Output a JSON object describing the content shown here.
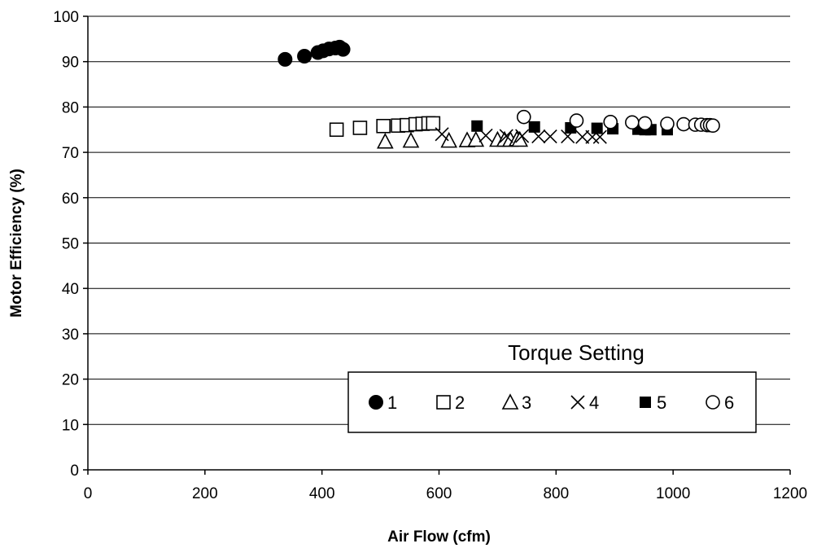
{
  "chart_data": {
    "type": "scatter",
    "xlabel": "Air Flow (cfm)",
    "ylabel": "Motor Efficiency (%)",
    "xlim": [
      0,
      1200
    ],
    "ylim": [
      0,
      100
    ],
    "xticks": [
      "0",
      "200",
      "400",
      "600",
      "800",
      "1000",
      "1200"
    ],
    "yticks": [
      "0",
      "10",
      "20",
      "30",
      "40",
      "50",
      "60",
      "70",
      "80",
      "90",
      "100"
    ],
    "grid": "horizontal",
    "legend": {
      "title": "Torque Setting",
      "placement": "bottom-right"
    },
    "series": [
      {
        "name": "1",
        "marker": "filled-circle",
        "points": [
          [
            337,
            90.5
          ],
          [
            370,
            91.2
          ],
          [
            393,
            92.0
          ],
          [
            402,
            92.4
          ],
          [
            412,
            92.8
          ],
          [
            423,
            93.0
          ],
          [
            430,
            93.2
          ],
          [
            436,
            92.7
          ]
        ]
      },
      {
        "name": "2",
        "marker": "open-square",
        "points": [
          [
            425,
            75.0
          ],
          [
            465,
            75.4
          ],
          [
            505,
            75.8
          ],
          [
            530,
            75.9
          ],
          [
            545,
            76.0
          ],
          [
            560,
            76.2
          ],
          [
            572,
            76.3
          ],
          [
            582,
            76.4
          ],
          [
            590,
            76.4
          ]
        ]
      },
      {
        "name": "3",
        "marker": "open-triangle",
        "points": [
          [
            508,
            72.4
          ],
          [
            552,
            72.6
          ],
          [
            617,
            72.6
          ],
          [
            648,
            72.7
          ],
          [
            663,
            72.8
          ],
          [
            700,
            72.8
          ],
          [
            712,
            72.8
          ],
          [
            722,
            72.8
          ],
          [
            733,
            72.9
          ],
          [
            738,
            72.8
          ]
        ]
      },
      {
        "name": "4",
        "marker": "cross",
        "points": [
          [
            605,
            74.0
          ],
          [
            680,
            73.7
          ],
          [
            715,
            73.6
          ],
          [
            742,
            73.6
          ],
          [
            770,
            73.5
          ],
          [
            790,
            73.5
          ],
          [
            820,
            73.5
          ],
          [
            845,
            73.4
          ],
          [
            862,
            73.4
          ],
          [
            875,
            73.4
          ]
        ]
      },
      {
        "name": "5",
        "marker": "filled-square",
        "points": [
          [
            665,
            75.8
          ],
          [
            763,
            75.6
          ],
          [
            825,
            75.4
          ],
          [
            870,
            75.3
          ],
          [
            897,
            75.2
          ],
          [
            940,
            75.1
          ],
          [
            952,
            75.0
          ],
          [
            962,
            75.0
          ],
          [
            990,
            75.0
          ]
        ]
      },
      {
        "name": "6",
        "marker": "open-circle",
        "points": [
          [
            745,
            77.8
          ],
          [
            835,
            77.0
          ],
          [
            893,
            76.7
          ],
          [
            930,
            76.6
          ],
          [
            952,
            76.4
          ],
          [
            990,
            76.3
          ],
          [
            1018,
            76.2
          ],
          [
            1038,
            76.1
          ],
          [
            1048,
            76.1
          ],
          [
            1058,
            76.0
          ],
          [
            1063,
            76.0
          ],
          [
            1068,
            75.9
          ]
        ]
      }
    ]
  }
}
